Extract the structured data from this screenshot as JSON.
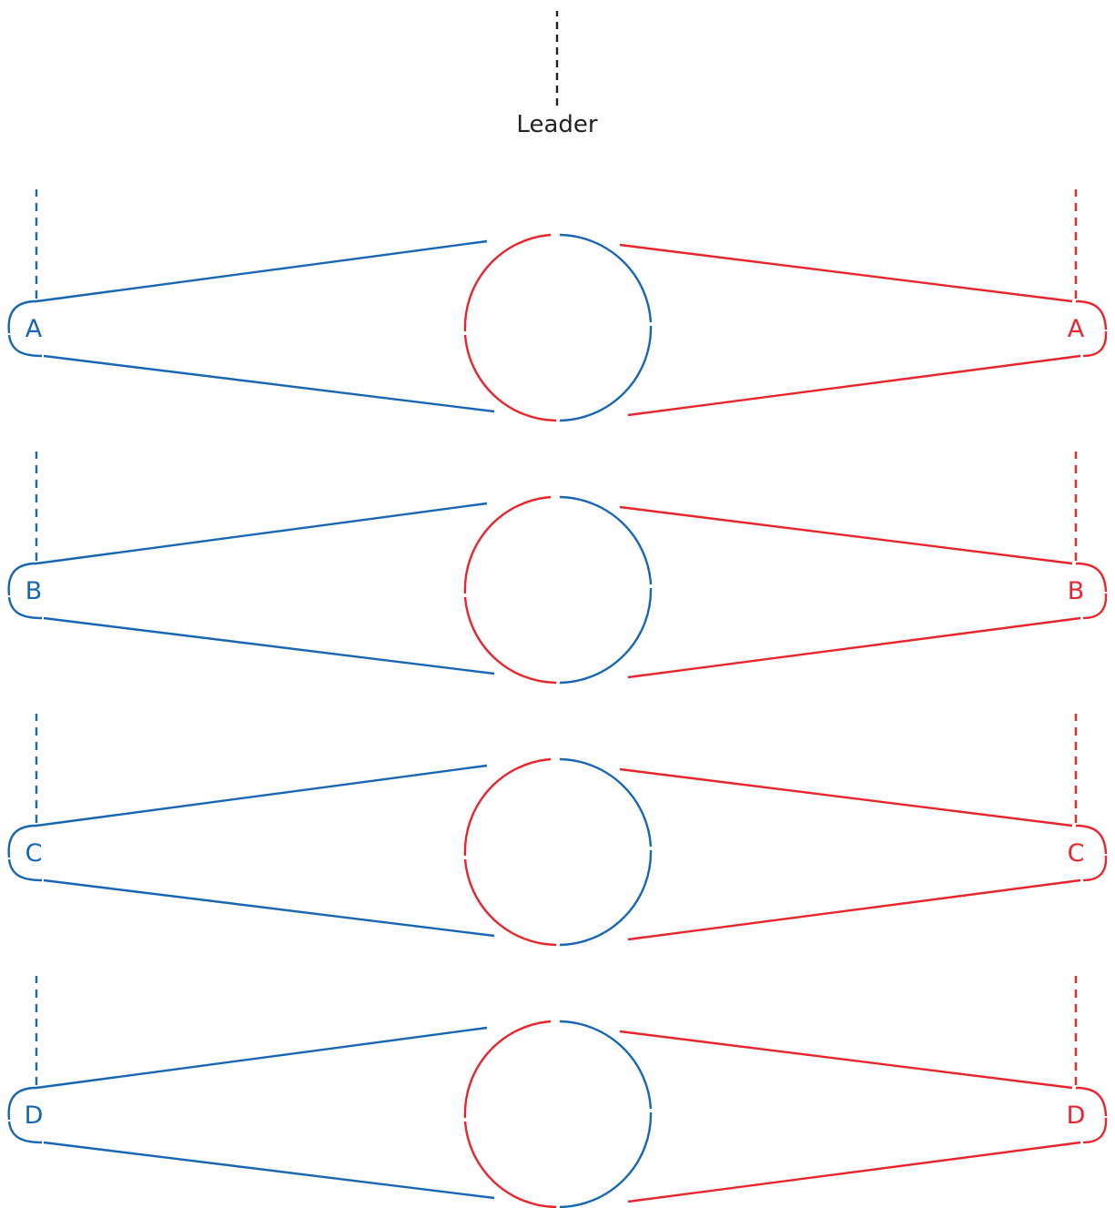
{
  "leader": {
    "label": "Leader",
    "color": "#222222"
  },
  "colors": {
    "left": "#1766b2",
    "right": "#e8242c"
  },
  "rows": [
    {
      "left_label": "A",
      "right_label": "A"
    },
    {
      "left_label": "B",
      "right_label": "B"
    },
    {
      "left_label": "C",
      "right_label": "C"
    },
    {
      "left_label": "D",
      "right_label": "D"
    }
  ]
}
